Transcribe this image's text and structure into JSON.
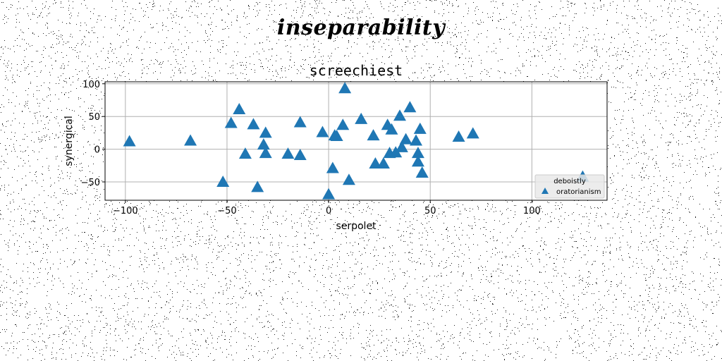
{
  "suptitle": "inseparability",
  "chart_data": {
    "type": "scatter",
    "title": "screechiest",
    "xlabel": "serpolet",
    "ylabel": "synergical",
    "xlim": [
      -110,
      137
    ],
    "ylim": [
      -78,
      103
    ],
    "xticks": [
      -100,
      -50,
      0,
      50,
      100
    ],
    "yticks": [
      -50,
      0,
      50,
      100
    ],
    "grid": true,
    "legend": {
      "title": "deboistly",
      "placement": "lower-right"
    },
    "series": [
      {
        "name": "oratorianism",
        "color": "#1f77b4",
        "marker": "triangle-up",
        "points": [
          {
            "x": -98,
            "y": 12
          },
          {
            "x": -68,
            "y": 13
          },
          {
            "x": -52,
            "y": -50
          },
          {
            "x": -48,
            "y": 40
          },
          {
            "x": -44,
            "y": 61
          },
          {
            "x": -41,
            "y": -7
          },
          {
            "x": -37,
            "y": 38
          },
          {
            "x": -35,
            "y": -58
          },
          {
            "x": -32,
            "y": 7
          },
          {
            "x": -31,
            "y": 25
          },
          {
            "x": -31,
            "y": -6
          },
          {
            "x": -20,
            "y": -7
          },
          {
            "x": -14,
            "y": 41
          },
          {
            "x": -14,
            "y": -9
          },
          {
            "x": -3,
            "y": 26
          },
          {
            "x": 0,
            "y": -69
          },
          {
            "x": 2,
            "y": -29
          },
          {
            "x": 3,
            "y": 21
          },
          {
            "x": 4,
            "y": 20
          },
          {
            "x": 7,
            "y": 37
          },
          {
            "x": 8,
            "y": 93
          },
          {
            "x": 10,
            "y": -47
          },
          {
            "x": 16,
            "y": 46
          },
          {
            "x": 22,
            "y": 21
          },
          {
            "x": 23,
            "y": -22
          },
          {
            "x": 27,
            "y": -22
          },
          {
            "x": 29,
            "y": 37
          },
          {
            "x": 30,
            "y": -6
          },
          {
            "x": 31,
            "y": 30
          },
          {
            "x": 33,
            "y": -5
          },
          {
            "x": 35,
            "y": 51
          },
          {
            "x": 36,
            "y": 3
          },
          {
            "x": 38,
            "y": 15
          },
          {
            "x": 40,
            "y": 64
          },
          {
            "x": 43,
            "y": 13
          },
          {
            "x": 44,
            "y": -6
          },
          {
            "x": 44,
            "y": -19
          },
          {
            "x": 45,
            "y": 31
          },
          {
            "x": 46,
            "y": -36
          },
          {
            "x": 64,
            "y": 19
          },
          {
            "x": 71,
            "y": 24
          },
          {
            "x": 125,
            "y": -42
          }
        ]
      }
    ]
  }
}
